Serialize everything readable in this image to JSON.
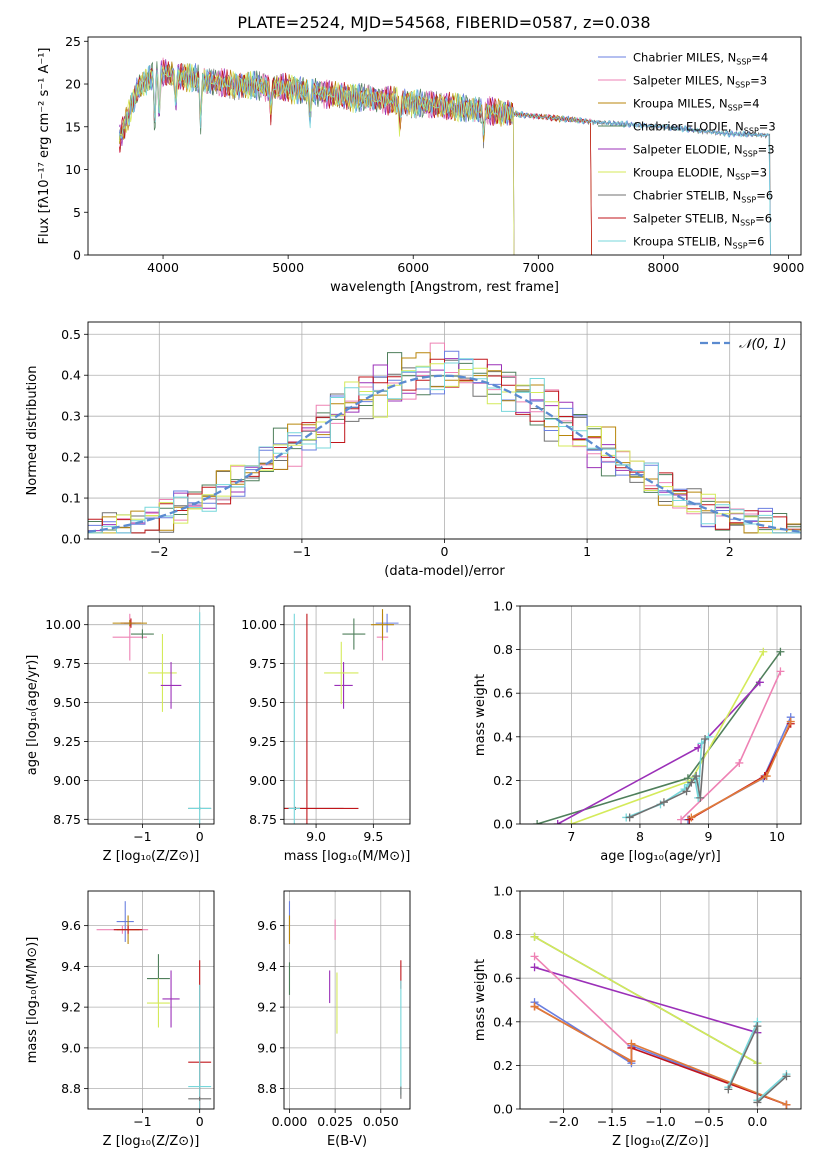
{
  "title": "PLATE=2524, MJD=54568, FIBERID=0587, z=0.038",
  "models": [
    {
      "name": "Chabrier MILES",
      "nssp": "4",
      "color": "#6a7fe0"
    },
    {
      "name": "Salpeter MILES",
      "nssp": "3",
      "color": "#ee82b4"
    },
    {
      "name": "Kroupa MILES",
      "nssp": "4",
      "color": "#b8860b"
    },
    {
      "name": "Chabrier ELODIE",
      "nssp": "3",
      "color": "#4f7f5b"
    },
    {
      "name": "Salpeter ELODIE",
      "nssp": "3",
      "color": "#9b30b8"
    },
    {
      "name": "Kroupa ELODIE",
      "nssp": "3",
      "color": "#d4ea5a"
    },
    {
      "name": "Chabrier STELIB",
      "nssp": "6",
      "color": "#707070"
    },
    {
      "name": "Salpeter STELIB",
      "nssp": "6",
      "color": "#c0161b"
    },
    {
      "name": "Kroupa STELIB",
      "nssp": "6",
      "color": "#77d7db"
    }
  ],
  "accent_orange": "#e07b39",
  "chart_data": [
    {
      "id": "spectrum",
      "type": "line",
      "xlabel": "wavelength [Angstrom, rest frame]",
      "ylabel": "Flux [fλ10⁻¹⁷ erg cm⁻² s⁻¹ A⁻¹]",
      "xlim": [
        3400,
        9100
      ],
      "ylim": [
        0,
        25.5
      ],
      "xticks": [
        4000,
        5000,
        6000,
        7000,
        8000,
        9000
      ],
      "yticks": [
        0,
        5,
        10,
        15,
        20,
        25
      ],
      "continuum": [
        [
          3650,
          13.5
        ],
        [
          3800,
          19.5
        ],
        [
          3950,
          21.5
        ],
        [
          4100,
          21
        ],
        [
          4500,
          20
        ],
        [
          5000,
          19.5
        ],
        [
          5500,
          18.5
        ],
        [
          6000,
          17.8
        ],
        [
          6500,
          17
        ],
        [
          7000,
          16.2
        ],
        [
          7500,
          15.5
        ],
        [
          8000,
          15
        ],
        [
          8500,
          14.2
        ],
        [
          8850,
          14
        ]
      ],
      "absorption_lines": [
        [
          3934,
          6
        ],
        [
          3969,
          5
        ],
        [
          4102,
          3
        ],
        [
          4300,
          5
        ],
        [
          4861,
          3
        ],
        [
          5175,
          3
        ],
        [
          5893,
          3
        ],
        [
          6563,
          3
        ]
      ],
      "coverage": [
        {
          "model": 0,
          "x": [
            3650,
            8850
          ]
        },
        {
          "model": 1,
          "x": [
            3650,
            7420
          ]
        },
        {
          "model": 2,
          "x": [
            3650,
            7420
          ]
        },
        {
          "model": 3,
          "x": [
            3650,
            6800
          ]
        },
        {
          "model": 4,
          "x": [
            3650,
            6800
          ]
        },
        {
          "model": 5,
          "x": [
            3650,
            6800
          ]
        },
        {
          "model": 6,
          "x": [
            3650,
            8850
          ]
        },
        {
          "model": 7,
          "x": [
            3650,
            7420
          ]
        },
        {
          "model": 8,
          "x": [
            3650,
            8850
          ]
        }
      ]
    },
    {
      "id": "residuals",
      "type": "histogram",
      "xlabel": "(data-model)/error",
      "ylabel": "Normed distribution",
      "xlim": [
        -2.5,
        2.5
      ],
      "ylim": [
        0,
        0.53
      ],
      "xticks": [
        -2,
        -1,
        0,
        1,
        2
      ],
      "yticks": [
        0.0,
        0.1,
        0.2,
        0.3,
        0.4,
        0.5
      ],
      "grid": true,
      "bin_width": 0.1,
      "reference_curve": {
        "label": "𝒩(0, 1)",
        "color": "#5b8bd0",
        "style": "dashed"
      },
      "legend": "top-right"
    },
    {
      "id": "age-vs-Z",
      "type": "errorbar",
      "xlabel": "Z [log₁₀(Z/Z⊙)]",
      "ylabel": "age  [log₁₀(age/yr)]",
      "xlim": [
        -1.95,
        0.25
      ],
      "ylim": [
        8.72,
        10.12
      ],
      "xticks": [
        -1,
        0
      ],
      "yticks": [
        8.75,
        9.0,
        9.25,
        9.5,
        9.75,
        10.0
      ],
      "grid": true,
      "points": [
        {
          "model": 0,
          "x": -1.22,
          "y": 10.01,
          "xerr": 0.1,
          "yerr": 0.02
        },
        {
          "model": 1,
          "x": -1.22,
          "y": 9.92,
          "xerr": 0.3,
          "yerr": 0.15
        },
        {
          "model": 7,
          "x": -1.2,
          "y": 10.01,
          "xerr": 0.18,
          "yerr": 0.03
        },
        {
          "model": 2,
          "x": -1.22,
          "y": 10.01,
          "xerr": 0.3,
          "yerr": 0.02
        },
        {
          "model": 3,
          "x": -1.0,
          "y": 9.94,
          "xerr": 0.2,
          "yerr": 0.03
        },
        {
          "model": 5,
          "x": -0.65,
          "y": 9.69,
          "xerr": 0.25,
          "yerr": 0.25
        },
        {
          "model": 4,
          "x": -0.5,
          "y": 9.61,
          "xerr": 0.18,
          "yerr": 0.15
        },
        {
          "model": 6,
          "x": 0.0,
          "y": 8.82,
          "xerr": 0.2,
          "yerr": 0.01
        },
        {
          "model": 8,
          "x": 0.0,
          "y": 8.82,
          "xerr": 0.2,
          "yerr": 1.26
        }
      ]
    },
    {
      "id": "age-vs-mass",
      "type": "errorbar",
      "xlabel": "mass [log₁₀(M/M⊙)]",
      "xlim": [
        8.72,
        9.82
      ],
      "ylim": [
        8.72,
        10.12
      ],
      "xticks": [
        9.0,
        9.5
      ],
      "yticks": [
        8.75,
        9.0,
        9.25,
        9.5,
        9.75,
        10.0
      ],
      "grid": true,
      "points": [
        {
          "model": 0,
          "x": 9.62,
          "y": 10.01,
          "xerr": 0.1,
          "yerr": 0.06
        },
        {
          "model": 1,
          "x": 9.58,
          "y": 9.92,
          "xerr": 0.05,
          "yerr": 0.15
        },
        {
          "model": 2,
          "x": 9.58,
          "y": 10.0,
          "xerr": 0.1,
          "yerr": 0.1
        },
        {
          "model": 3,
          "x": 9.33,
          "y": 9.94,
          "xerr": 0.1,
          "yerr": 0.1
        },
        {
          "model": 4,
          "x": 9.24,
          "y": 9.61,
          "xerr": 0.08,
          "yerr": 0.15
        },
        {
          "model": 5,
          "x": 9.22,
          "y": 9.69,
          "xerr": 0.15,
          "yerr": 0.2
        },
        {
          "model": 6,
          "x": 8.82,
          "y": 8.82,
          "xerr": 0.42,
          "yerr": 0.01
        },
        {
          "model": 7,
          "x": 8.92,
          "y": 8.82,
          "xerr": 0.45,
          "yerr": 1.25
        },
        {
          "model": 8,
          "x": 8.81,
          "y": 8.82,
          "xerr": 0.05,
          "yerr": 1.25
        }
      ]
    },
    {
      "id": "weight-vs-age",
      "type": "line",
      "xlabel": "age  [log₁₀(age/yr)]",
      "ylabel": "mass weight",
      "xlim": [
        6.25,
        10.35
      ],
      "ylim": [
        0,
        1.0
      ],
      "xticks": [
        7,
        8,
        9,
        10
      ],
      "yticks": [
        0.0,
        0.2,
        0.4,
        0.6,
        0.8,
        1.0
      ],
      "grid": true,
      "series": [
        {
          "model": 3,
          "x": [
            6.5,
            8.7,
            10.05
          ],
          "y": [
            0.0,
            0.21,
            0.79
          ]
        },
        {
          "model": 4,
          "x": [
            6.8,
            8.85,
            9.75
          ],
          "y": [
            0.0,
            0.35,
            0.65
          ]
        },
        {
          "model": 5,
          "x": [
            7.0,
            8.75,
            9.8
          ],
          "y": [
            0.0,
            0.2,
            0.79
          ]
        },
        {
          "model": 1,
          "x": [
            8.6,
            9.45,
            10.05
          ],
          "y": [
            0.02,
            0.28,
            0.7
          ]
        },
        {
          "model": 0,
          "x": [
            8.7,
            9.8,
            10.2
          ],
          "y": [
            0.02,
            0.21,
            0.49
          ]
        },
        {
          "model": 7,
          "x": [
            8.72,
            9.82,
            10.2
          ],
          "y": [
            0.02,
            0.22,
            0.46
          ]
        },
        {
          "model": 2,
          "x": [
            8.75,
            9.85,
            10.2
          ],
          "y": [
            0.03,
            0.22,
            0.47
          ]
        },
        {
          "model": 8,
          "x": [
            7.8,
            8.3,
            8.65,
            8.7,
            8.8,
            8.85,
            8.9,
            9.0
          ],
          "y": [
            0.03,
            0.09,
            0.16,
            0.18,
            0.21,
            0.12,
            0.37,
            0.4
          ]
        },
        {
          "model": 6,
          "x": [
            7.85,
            8.35,
            8.68,
            8.75,
            8.82,
            8.88,
            8.95
          ],
          "y": [
            0.03,
            0.1,
            0.15,
            0.19,
            0.22,
            0.12,
            0.39
          ]
        }
      ]
    },
    {
      "id": "mass-vs-Z",
      "type": "errorbar",
      "xlabel": "Z [log₁₀(Z/Z⊙)]",
      "ylabel": "mass [log₁₀(M/M⊙)]",
      "xlim": [
        -1.95,
        0.25
      ],
      "ylim": [
        8.7,
        9.77
      ],
      "xticks": [
        -1,
        0
      ],
      "yticks": [
        8.8,
        9.0,
        9.2,
        9.4,
        9.6
      ],
      "grid": true,
      "points": [
        {
          "model": 0,
          "x": -1.3,
          "y": 9.62,
          "xerr": 0.15,
          "yerr": 0.1
        },
        {
          "model": 1,
          "x": -1.35,
          "y": 9.58,
          "xerr": 0.45,
          "yerr": 0.02
        },
        {
          "model": 2,
          "x": -1.25,
          "y": 9.58,
          "xerr": 0.2,
          "yerr": 0.07
        },
        {
          "model": 7,
          "x": -1.25,
          "y": 9.58,
          "xerr": 0.25,
          "yerr": 0.02
        },
        {
          "model": 3,
          "x": -0.72,
          "y": 9.34,
          "xerr": 0.2,
          "yerr": 0.12
        },
        {
          "model": 5,
          "x": -0.72,
          "y": 9.22,
          "xerr": 0.2,
          "yerr": 0.12
        },
        {
          "model": 4,
          "x": -0.5,
          "y": 9.24,
          "xerr": 0.15,
          "yerr": 0.14
        },
        {
          "model": 7,
          "x": 0.0,
          "y": 8.93,
          "xerr": 0.2,
          "yerr": 0.5
        },
        {
          "model": 8,
          "x": 0.0,
          "y": 8.81,
          "xerr": 0.2,
          "yerr": 0.5
        },
        {
          "model": 6,
          "x": 0.0,
          "y": 8.75,
          "xerr": 0.2,
          "yerr": 0.01
        }
      ]
    },
    {
      "id": "mass-vs-ebv",
      "type": "errorbar",
      "xlabel": "E(B-V)",
      "xlim": [
        -0.003,
        0.066
      ],
      "ylim": [
        8.7,
        9.77
      ],
      "xticks": [
        0.0,
        0.025,
        0.05
      ],
      "yticks": [
        8.8,
        9.0,
        9.2,
        9.4,
        9.6
      ],
      "grid": true,
      "points": [
        {
          "model": 0,
          "x": 0.0,
          "y": 9.62,
          "xerr": 0,
          "yerr": 0.1
        },
        {
          "model": 2,
          "x": 0.0,
          "y": 9.58,
          "xerr": 0,
          "yerr": 0.07
        },
        {
          "model": 3,
          "x": 0.0,
          "y": 9.34,
          "xerr": 0,
          "yerr": 0.08
        },
        {
          "model": 1,
          "x": 0.025,
          "y": 9.58,
          "xerr": 0,
          "yerr": 0.05
        },
        {
          "model": 4,
          "x": 0.022,
          "y": 9.3,
          "xerr": 0,
          "yerr": 0.08
        },
        {
          "model": 5,
          "x": 0.026,
          "y": 9.22,
          "xerr": 0,
          "yerr": 0.15
        },
        {
          "model": 7,
          "x": 0.061,
          "y": 9.36,
          "xerr": 0,
          "yerr": 0.07
        },
        {
          "model": 8,
          "x": 0.061,
          "y": 9.05,
          "xerr": 0,
          "yerr": 0.28
        },
        {
          "model": 6,
          "x": 0.061,
          "y": 8.78,
          "xerr": 0,
          "yerr": 0.03
        }
      ]
    },
    {
      "id": "weight-vs-Z",
      "type": "line",
      "xlabel": "Z [log₁₀(Z/Z⊙)]",
      "ylabel": "mass weight",
      "xlim": [
        -2.45,
        0.45
      ],
      "ylim": [
        0,
        1.0
      ],
      "xticks": [
        -2.0,
        -1.5,
        -1.0,
        -0.5,
        0.0
      ],
      "yticks": [
        0.0,
        0.2,
        0.4,
        0.6,
        0.8,
        1.0
      ],
      "grid": true,
      "series": [
        {
          "model": 3,
          "x": [
            -2.3,
            0.0
          ],
          "y": [
            0.79,
            0.21
          ]
        },
        {
          "model": 5,
          "x": [
            -2.3,
            0.0
          ],
          "y": [
            0.79,
            0.21
          ]
        },
        {
          "model": 4,
          "x": [
            -2.3,
            0.0
          ],
          "y": [
            0.65,
            0.35
          ]
        },
        {
          "model": 1,
          "x": [
            -2.3,
            -1.3,
            0.3
          ],
          "y": [
            0.7,
            0.28,
            0.02
          ]
        },
        {
          "model": 0,
          "x": [
            -2.3,
            -1.3,
            -1.3,
            0.3
          ],
          "y": [
            0.49,
            0.21,
            0.29,
            0.02
          ]
        },
        {
          "model": 7,
          "x": [
            -2.3,
            -1.3,
            -1.3,
            0.3
          ],
          "y": [
            0.47,
            0.22,
            0.28,
            0.02
          ]
        },
        {
          "model": 2,
          "x": [
            -2.3,
            -1.3,
            -1.3,
            0.3
          ],
          "y": [
            0.47,
            0.22,
            0.3,
            0.02
          ]
        },
        {
          "model": 8,
          "x": [
            -0.3,
            0.0,
            0.0,
            0.3
          ],
          "y": [
            0.1,
            0.4,
            0.04,
            0.16
          ]
        },
        {
          "model": 6,
          "x": [
            -0.3,
            0.0,
            0.0,
            0.3
          ],
          "y": [
            0.09,
            0.38,
            0.03,
            0.15
          ]
        }
      ]
    }
  ]
}
